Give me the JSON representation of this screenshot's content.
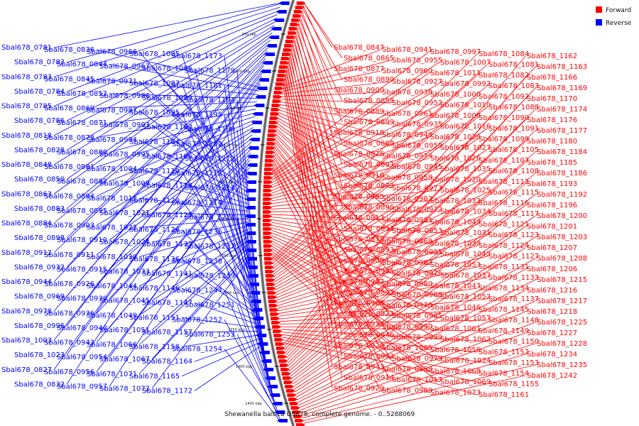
{
  "caption": "Shewanella baltica OS678, complete genome. - 0..5288069",
  "legend": [
    {
      "label": "Forward",
      "color": "#ff0000"
    },
    {
      "label": "Reverse",
      "color": "#0000ff"
    }
  ],
  "colors": {
    "forward": "#ff0000",
    "reverse": "#0000ff",
    "backbone": "#8a8a8a"
  },
  "ticks": [
    "950 kbp",
    "1000 kbp",
    "1050 kbp",
    "1100 kbp",
    "1150 kbp",
    "1200 kbp",
    "1250 kbp",
    "1300 kbp",
    "1350 kbp",
    "1400 kbp",
    "1450 kbp"
  ],
  "reverse_labels": [
    "Sbal678_0781",
    "Sbal678_0782",
    "Sbal678_0783",
    "Sbal678_0784",
    "Sbal678_0785",
    "Sbal678_0786",
    "Sbal678_0818",
    "Sbal678_0828",
    "Sbal678_0848",
    "Sbal678_0850",
    "Sbal678_0863",
    "Sbal678_0883",
    "Sbal678_0884",
    "Sbal678_0898",
    "Sbal678_0912",
    "Sbal678_0932",
    "Sbal678_0944",
    "Sbal678_0969",
    "Sbal678_0978",
    "Sbal678_0996",
    "Sbal678_1003",
    "Sbal678_1023",
    "Sbal678_0827",
    "Sbal678_0832",
    "Sbal678_0836",
    "Sbal678_0844",
    "Sbal678_0845",
    "Sbal678_0852",
    "Sbal678_0869",
    "Sbal678_0871",
    "Sbal678_0878",
    "Sbal678_0880",
    "Sbal678_0881",
    "Sbal678_0882",
    "Sbal678_0894",
    "Sbal678_0895",
    "Sbal678_0903",
    "Sbal678_0910",
    "Sbal678_0911",
    "Sbal678_0915",
    "Sbal678_0926",
    "Sbal678_0930",
    "Sbal678_0936",
    "Sbal678_0940",
    "Sbal678_0942",
    "Sbal678_0954",
    "Sbal678_0956",
    "Sbal678_0957",
    "Sbal678_0966",
    "Sbal678_0967",
    "Sbal678_0971",
    "Sbal678_0986",
    "Sbal678_0987",
    "Sbal678_0993",
    "Sbal678_0994",
    "Sbal678_0995",
    "Sbal678_1004",
    "Sbal678_1009",
    "Sbal678_1012",
    "Sbal678_1021",
    "Sbal678_1022",
    "Sbal678_1024",
    "Sbal678_1030",
    "Sbal678_1033",
    "Sbal678_1044",
    "Sbal678_1045",
    "Sbal678_1049",
    "Sbal678_1051",
    "Sbal678_1066",
    "Sbal678_1067",
    "Sbal678_1071",
    "Sbal678_1072",
    "Sbal678_1085",
    "Sbal678_1086",
    "Sbal678_1087",
    "Sbal678_1089",
    "Sbal678_1095",
    "Sbal678_1103",
    "Sbal678_1104",
    "Sbal678_1106",
    "Sbal678_1110",
    "Sbal678_1118",
    "Sbal678_1120",
    "Sbal678_1125",
    "Sbal678_1126",
    "Sbal678_1132",
    "Sbal678_1136",
    "Sbal678_1141",
    "Sbal678_1146",
    "Sbal678_1147",
    "Sbal678_1151",
    "Sbal678_1157",
    "Sbal678_1158",
    "Sbal678_1164",
    "Sbal678_1165",
    "Sbal678_1172",
    "Sbal678_1173",
    "Sbal678_1179",
    "Sbal678_1181",
    "Sbal678_1194",
    "Sbal678_1195",
    "Sbal678_1198",
    "Sbal678_1202",
    "Sbal678_1211",
    "Sbal678_1212",
    "Sbal678_1213",
    "Sbal678_1214",
    "Sbal678_1224",
    "Sbal678_1236",
    "Sbal678_1237",
    "Sbal678_1238",
    "Sbal678_1239",
    "Sbal678_1244",
    "Sbal678_1251",
    "Sbal678_1252",
    "Sbal678_1253",
    "Sbal678_1254"
  ],
  "forward_labels": [
    "Sbal678_0847",
    "Sbal678_0865",
    "Sbal678_0877",
    "Sbal678_0890",
    "Sbal678_0900",
    "Sbal678_0858",
    "Sbal678_0889",
    "Sbal678_0899",
    "Sbal678_0918",
    "Sbal678_0868",
    "Sbal678_0876",
    "Sbal678_0897",
    "Sbal678_0916",
    "Sbal678_0872",
    "Sbal678_0885",
    "Sbal678_0896",
    "Sbal678_0913",
    "Sbal678_0931",
    "Sbal678_0879",
    "Sbal678_0893",
    "Sbal678_0909",
    "Sbal678_0925",
    "Sbal678_0947",
    "Sbal678_0892",
    "Sbal678_0906",
    "Sbal678_0923",
    "Sbal678_0934",
    "Sbal678_0946",
    "Sbal678_0920",
    "Sbal678_0933",
    "Sbal678_0943",
    "Sbal678_0914",
    "Sbal678_0929",
    "Sbal678_0941",
    "Sbal678_0955",
    "Sbal678_0960",
    "Sbal678_0927",
    "Sbal678_0938",
    "Sbal678_0952",
    "Sbal678_0961",
    "Sbal678_0935",
    "Sbal678_0949",
    "Sbal678_0959",
    "Sbal678_0974",
    "Sbal678_0945",
    "Sbal678_0958",
    "Sbal678_0973",
    "Sbal678_0982",
    "Sbal678_0972",
    "Sbal678_0981",
    "Sbal678_0953",
    "Sbal678_0968",
    "Sbal678_0991",
    "Sbal678_0962",
    "Sbal678_0976",
    "Sbal678_0980",
    "Sbal678_0988",
    "Sbal678_0970",
    "Sbal678_0985",
    "Sbal678_0990",
    "Sbal678_0999",
    "Sbal678_1005",
    "Sbal678_0979",
    "Sbal678_0998",
    "Sbal678_1017",
    "Sbal678_0989",
    "Sbal678_0997",
    "Sbal678_1007",
    "Sbal678_1011",
    "Sbal678_0992",
    "Sbal678_1000",
    "Sbal678_1010",
    "Sbal678_1008",
    "Sbal678_1016",
    "Sbal678_1028",
    "Sbal678_1027",
    "Sbal678_1026",
    "Sbal678_1035",
    "Sbal678_1020",
    "Sbal678_1025",
    "Sbal678_1032",
    "Sbal678_1034",
    "Sbal678_1043",
    "Sbal678_1031",
    "Sbal678_1038",
    "Sbal678_1042",
    "Sbal678_1053",
    "Sbal678_1037",
    "Sbal678_1047",
    "Sbal678_1052",
    "Sbal678_1046",
    "Sbal678_1057",
    "Sbal678_1061",
    "Sbal678_1062",
    "Sbal678_1056",
    "Sbal678_1074",
    "Sbal678_1068",
    "Sbal678_1069",
    "Sbal678_1073",
    "Sbal678_1084",
    "Sbal678_1081",
    "Sbal678_1082",
    "Sbal678_1083",
    "Sbal678_1092",
    "Sbal678_1088",
    "Sbal678_1090",
    "Sbal678_1091",
    "Sbal678_1099",
    "Sbal678_1105",
    "Sbal678_1107",
    "Sbal678_1108",
    "Sbal678_1112",
    "Sbal678_1115",
    "Sbal678_1116",
    "Sbal678_1117",
    "Sbal678_1121",
    "Sbal678_1123",
    "Sbal678_1124",
    "Sbal678_1127",
    "Sbal678_1131",
    "Sbal678_1133",
    "Sbal678_1134",
    "Sbal678_1137",
    "Sbal678_1145",
    "Sbal678_1148",
    "Sbal678_1149",
    "Sbal678_1150",
    "Sbal678_1152",
    "Sbal678_1153",
    "Sbal678_1154",
    "Sbal678_1155",
    "Sbal678_1161",
    "Sbal678_1162",
    "Sbal678_1163",
    "Sbal678_1166",
    "Sbal678_1169",
    "Sbal678_1170",
    "Sbal678_1174",
    "Sbal678_1176",
    "Sbal678_1177",
    "Sbal678_1180",
    "Sbal678_1184",
    "Sbal678_1185",
    "Sbal678_1186",
    "Sbal678_1193",
    "Sbal678_1192",
    "Sbal678_1196",
    "Sbal678_1200",
    "Sbal678_1201",
    "Sbal678_1203",
    "Sbal678_1207",
    "Sbal678_1208",
    "Sbal678_1206",
    "Sbal678_1215",
    "Sbal678_1216",
    "Sbal678_1217",
    "Sbal678_1218",
    "Sbal678_1225",
    "Sbal678_1227",
    "Sbal678_1228",
    "Sbal678_1234",
    "Sbal678_1235",
    "Sbal678_1242"
  ]
}
